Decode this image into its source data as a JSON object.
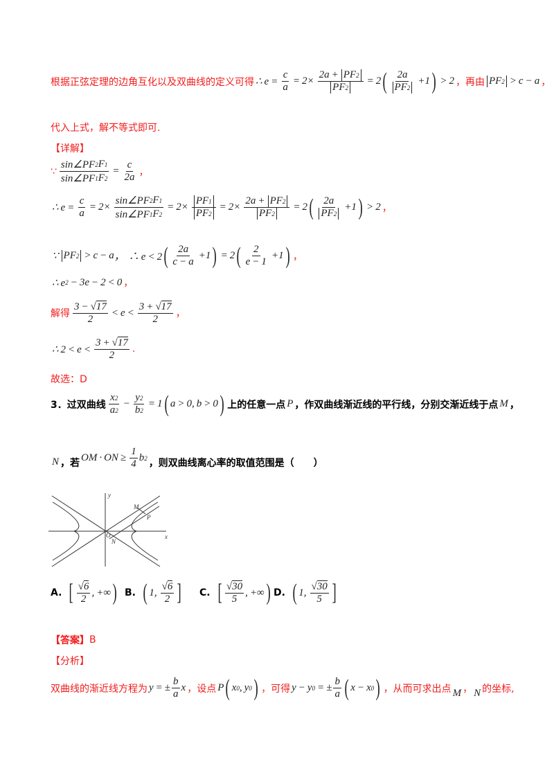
{
  "colors": {
    "red": "#f21c1c",
    "text": "#000000"
  },
  "analysis_intro": {
    "text": "根据正弦定理的边角互化以及双曲线的定义可得",
    "formula": [
      "∴ e = ",
      {
        "frac": [
          [
            "c"
          ],
          [
            "a"
          ]
        ]
      },
      " = 2× ",
      {
        "frac": [
          [
            "2a + ",
            {
              "abs": [
                "PF",
                {
                  "sub": "2"
                }
              ]
            }
          ],
          [
            {
              "abs": [
                "PF",
                {
                  "sub": "2"
                }
              ]
            }
          ]
        ]
      },
      " = 2",
      {
        "paren": [
          {
            "frac": [
              [
                "2a"
              ],
              [
                {
                  "abs": [
                    "PF",
                    {
                      "sub": "2"
                    }
                  ]
                }
              ]
            ]
          },
          " +1"
        ]
      },
      " > 2"
    ],
    "text2": "，再由",
    "formula2": [
      {
        "abs": [
          "PF",
          {
            "sub": "2"
          }
        ]
      },
      " > c − a"
    ],
    "text3": "，",
    "line2": "代入上式，解不等式即可."
  },
  "detail_heading": "【详解】",
  "steps": [
    {
      "prefix": "∵",
      "formula": [
        {
          "frac": [
            [
              "sin∠PF",
              {
                "sub": "2"
              },
              "F",
              {
                "sub": "1"
              }
            ],
            [
              "sin∠PF",
              {
                "sub": "1"
              },
              "F",
              {
                "sub": "2"
              }
            ]
          ]
        },
        " = ",
        {
          "frac": [
            [
              "c"
            ],
            [
              "2a"
            ]
          ]
        }
      ],
      "suffix": "，"
    },
    {
      "prefix": "",
      "formula": [
        "∴ e = ",
        {
          "frac": [
            [
              "c"
            ],
            [
              "a"
            ]
          ]
        },
        " = 2× ",
        {
          "frac": [
            [
              "sin∠PF",
              {
                "sub": "2"
              },
              "F",
              {
                "sub": "1"
              }
            ],
            [
              "sin∠PF",
              {
                "sub": "1"
              },
              "F",
              {
                "sub": "2"
              }
            ]
          ]
        },
        " = 2× ",
        {
          "frac": [
            [
              {
                "abs": [
                  "PF",
                  {
                    "sub": "1"
                  }
                ]
              }
            ],
            [
              {
                "abs": [
                  "PF",
                  {
                    "sub": "2"
                  }
                ]
              }
            ]
          ]
        },
        " = 2× ",
        {
          "frac": [
            [
              "2a + ",
              {
                "abs": [
                  "PF",
                  {
                    "sub": "2"
                  }
                ]
              }
            ],
            [
              {
                "abs": [
                  "PF",
                  {
                    "sub": "2"
                  }
                ]
              }
            ]
          ]
        },
        " = 2",
        {
          "paren": [
            {
              "frac": [
                [
                  "2a"
                ],
                [
                  {
                    "abs": [
                      "PF",
                      {
                        "sub": "2"
                      }
                    ]
                  }
                ]
              ]
            },
            " +1"
          ]
        },
        " > 2"
      ],
      "suffix": "，"
    },
    {
      "prefix": "",
      "formula": [
        "∵ ",
        {
          "abs": [
            "PF",
            {
              "sub": "2"
            }
          ]
        },
        " > c − a",
        "，  ∴ e < 2",
        {
          "paren": [
            {
              "frac": [
                [
                  "2a"
                ],
                [
                  "c − a"
                ]
              ]
            },
            " +1"
          ]
        },
        " = 2",
        {
          "paren": [
            {
              "frac": [
                [
                  "2"
                ],
                [
                  "e − 1"
                ]
              ]
            },
            " +1"
          ]
        }
      ],
      "suffix": "，"
    },
    {
      "prefix": "",
      "formula": [
        "∴ e",
        {
          "sup": "2"
        },
        " − 3e − 2 < 0"
      ],
      "suffix": "，"
    },
    {
      "prefix": "解得",
      "formula": [
        {
          "frac": [
            [
              "3 − ",
              {
                "sqrt": "17"
              }
            ],
            [
              "2"
            ]
          ]
        },
        " < e < ",
        {
          "frac": [
            [
              "3 + ",
              {
                "sqrt": "17"
              }
            ],
            [
              "2"
            ]
          ]
        }
      ],
      "suffix": "，"
    },
    {
      "prefix": "",
      "formula": [
        "∴ 2 < e < ",
        {
          "frac": [
            [
              "3 + ",
              {
                "sqrt": "17"
              }
            ],
            [
              "2"
            ]
          ]
        }
      ],
      "suffix": "."
    }
  ],
  "choice_line": "故选：D",
  "question": {
    "number": "3．",
    "text1": "过双曲线",
    "formula1": [
      {
        "frac": [
          [
            "x",
            {
              "sup": "2"
            }
          ],
          [
            "a",
            {
              "sup": "2"
            }
          ]
        ]
      },
      " − ",
      {
        "frac": [
          [
            "y",
            {
              "sup": "2"
            }
          ],
          [
            "b",
            {
              "sup": "2"
            }
          ]
        ]
      },
      " = 1",
      {
        "paren": [
          "a > 0, b > 0"
        ]
      }
    ],
    "text2": "上的任意一点",
    "P": "P",
    "text3": "，作双曲线渐近线的平行线，分别交渐近线于点",
    "M": "M",
    "text4": "，",
    "N": "N",
    "text5": "，若",
    "formula2": [
      "OM · ON ≥ ",
      {
        "frac": [
          [
            "1"
          ],
          [
            "4"
          ]
        ]
      },
      "b",
      {
        "sup": "2"
      }
    ],
    "text6": "，则双曲线离心率的取值范围是（　　）"
  },
  "figure": {
    "labels": {
      "x": "x",
      "y": "y",
      "o": "O",
      "m": "M",
      "p": "P",
      "n": "N"
    }
  },
  "options": [
    {
      "label": "A.",
      "formula": [
        {
          "paren": [
            {
              "frac": [
                [
                  {
                    "sqrt": "6"
                  }
                ],
                [
                  "2"
                ]
              ]
            },
            ", +∞"
          ],
          "open": "[",
          "close": ")"
        }
      ]
    },
    {
      "label": "B.",
      "formula": [
        {
          "paren": [
            "1, ",
            {
              "frac": [
                [
                  {
                    "sqrt": "6"
                  }
                ],
                [
                  "2"
                ]
              ]
            }
          ],
          "open": "(",
          "close": "]"
        }
      ]
    },
    {
      "label": "C.",
      "formula": [
        {
          "paren": [
            {
              "frac": [
                [
                  {
                    "sqrt": "30"
                  }
                ],
                [
                  "5"
                ]
              ]
            },
            ", +∞"
          ],
          "open": "[",
          "close": ")"
        }
      ]
    },
    {
      "label": "D.",
      "formula": [
        {
          "paren": [
            "1, ",
            {
              "frac": [
                [
                  {
                    "sqrt": "30"
                  }
                ],
                [
                  "5"
                ]
              ]
            }
          ],
          "open": "(",
          "close": "]"
        }
      ]
    }
  ],
  "answer": {
    "heading": "【答案】",
    "value": "B"
  },
  "analysis_heading": "【分析】",
  "final_line": {
    "t1": "双曲线的渐近线方程为",
    "f1": [
      "y = ±",
      {
        "frac": [
          [
            "b"
          ],
          [
            "a"
          ]
        ]
      },
      "x"
    ],
    "t2": "，设点",
    "f2": [
      "P",
      {
        "paren": [
          "x",
          {
            "sub": "0"
          },
          ", y",
          {
            "sub": "0"
          }
        ]
      }
    ],
    "t3": "，可得",
    "f3": [
      "y − y",
      {
        "sub": "0"
      },
      " = ±",
      {
        "frac": [
          [
            "b"
          ],
          [
            "a"
          ]
        ]
      },
      {
        "paren": [
          "x − x",
          {
            "sub": "0"
          }
        ]
      }
    ],
    "t4": "，从而可求出点",
    "M": "M",
    "t5": "，",
    "N": "N",
    "t6": "的坐标,"
  }
}
